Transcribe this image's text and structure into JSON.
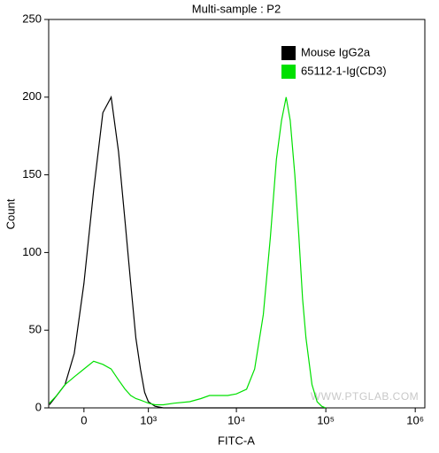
{
  "chart_data": {
    "type": "line",
    "title": "Multi-sample : P2",
    "x_label": "FITC-A",
    "y_label": "Count",
    "watermark": "WWW.PTGLAB.COM",
    "xscale": "biexponential",
    "legend": "upper right",
    "xlim": [
      -410,
      1280000
    ],
    "ylim": [
      0,
      250
    ],
    "xticks": [
      0,
      {
        "value": 1000,
        "label": "10³"
      },
      {
        "value": 10000,
        "label": "10⁴"
      },
      {
        "value": 100000,
        "label": "10⁵"
      },
      {
        "value": 1000000,
        "label": "10⁶"
      }
    ],
    "yticks": [
      0,
      50,
      100,
      150,
      200,
      250
    ],
    "x": [
      -400,
      -300,
      -200,
      -100,
      0,
      100,
      200,
      300,
      400,
      500,
      600,
      700,
      800,
      900,
      1000,
      1200,
      1500,
      2000,
      3000,
      4000,
      5000,
      6000,
      8000,
      10000,
      13000,
      16000,
      20000,
      24000,
      28000,
      32000,
      36000,
      40000,
      45000,
      50000,
      55000,
      60000,
      70000,
      80000,
      90000,
      100000
    ],
    "series": [
      {
        "name": "Mouse IgG2a",
        "color": "#000000",
        "values": [
          2,
          8,
          15,
          35,
          80,
          140,
          190,
          200,
          165,
          120,
          80,
          45,
          25,
          10,
          4,
          1,
          0,
          0,
          0,
          0,
          0,
          0,
          0,
          0,
          0,
          0,
          0,
          0,
          0,
          0,
          0,
          0,
          0,
          0,
          0,
          0,
          0,
          0,
          0,
          0
        ]
      },
      {
        "name": "65112-1-Ig(CD3)",
        "color": "#00e000",
        "values": [
          3,
          8,
          15,
          20,
          25,
          30,
          28,
          25,
          18,
          12,
          8,
          6,
          5,
          4,
          3,
          2,
          2,
          3,
          4,
          6,
          8,
          8,
          8,
          9,
          12,
          25,
          60,
          110,
          160,
          185,
          200,
          185,
          150,
          110,
          70,
          45,
          15,
          4,
          1,
          0
        ]
      }
    ]
  }
}
